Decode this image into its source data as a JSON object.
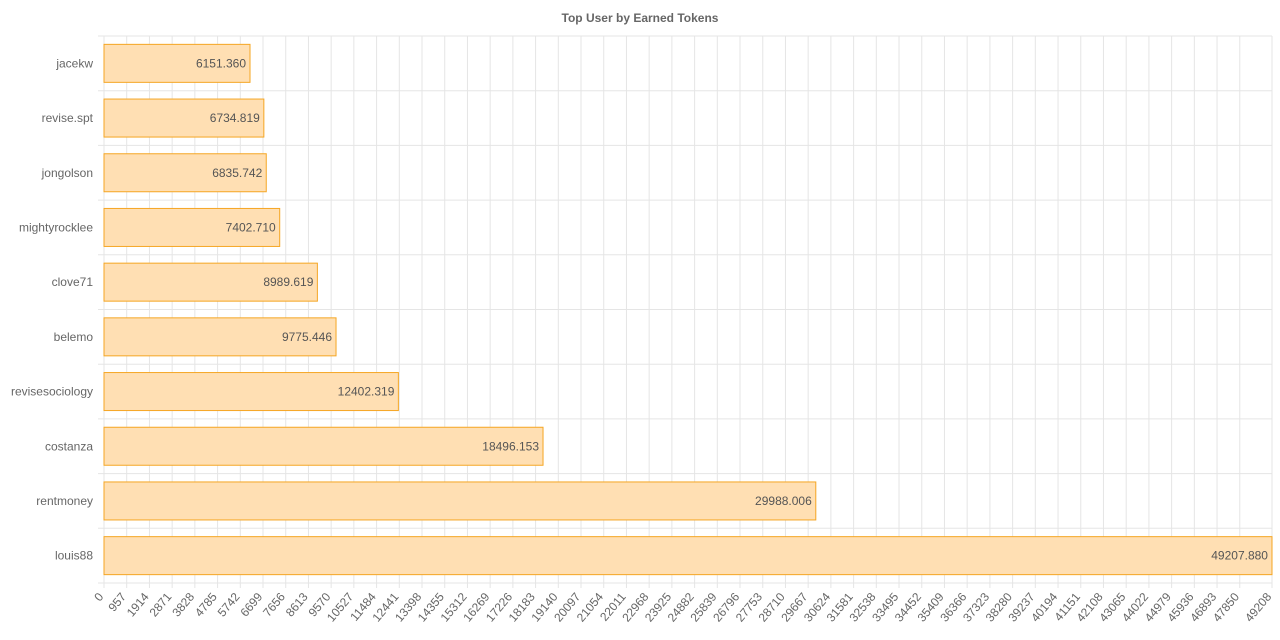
{
  "chart_data": {
    "type": "bar",
    "orientation": "horizontal",
    "title": "Top User by Earned Tokens",
    "xlabel": "",
    "ylabel": "",
    "xlim": [
      0,
      49208
    ],
    "grid": true,
    "categories": [
      "jacekw",
      "revise.spt",
      "jongolson",
      "mightyrocklee",
      "clove71",
      "belemo",
      "revisesociology",
      "costanza",
      "rentmoney",
      "louis88"
    ],
    "values": [
      6151.36,
      6734.819,
      6835.742,
      7402.71,
      8989.619,
      9775.446,
      12402.319,
      18496.153,
      29988.006,
      49207.88
    ],
    "value_labels": [
      "6151.360",
      "6734.819",
      "6835.742",
      "7402.710",
      "8989.619",
      "9775.446",
      "12402.319",
      "18496.153",
      "29988.006",
      "49207.880"
    ],
    "x_ticks": [
      "0",
      "957",
      "1914",
      "2871",
      "3828",
      "4785",
      "5742",
      "6699",
      "7656",
      "8613",
      "9570",
      "10527",
      "11484",
      "12441",
      "13398",
      "14355",
      "15312",
      "16269",
      "17226",
      "18183",
      "19140",
      "20097",
      "21054",
      "22011",
      "22968",
      "23925",
      "24882",
      "25839",
      "26796",
      "27753",
      "28710",
      "29667",
      "30624",
      "31581",
      "32538",
      "33495",
      "34452",
      "35409",
      "36366",
      "37323",
      "38280",
      "39237",
      "40194",
      "41151",
      "42108",
      "43065",
      "44022",
      "44979",
      "45936",
      "46893",
      "47850",
      "49208"
    ],
    "bar_fill": "#ffdfb3",
    "bar_stroke": "#f5a623"
  }
}
